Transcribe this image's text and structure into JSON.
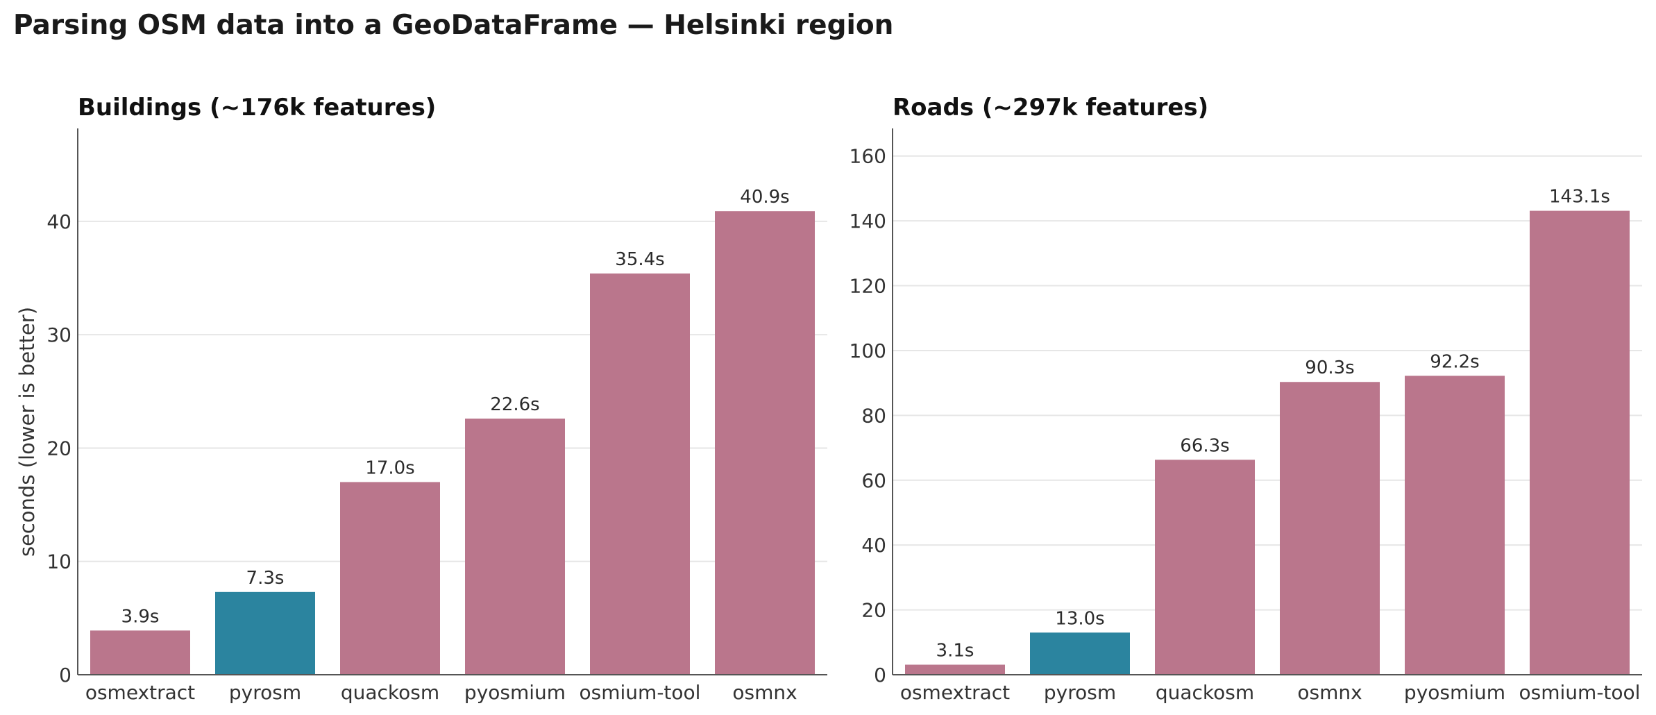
{
  "suptitle": "Parsing OSM data into a GeoDataFrame — Helsinki region",
  "colors": {
    "highlight": "#2b849f",
    "default": "#ba768c",
    "grid": "#e6e6e6",
    "axis": "#555555"
  },
  "chart_data": [
    {
      "type": "bar",
      "title": "Buildings (~176k features)",
      "ylabel": "seconds (lower is better)",
      "categories": [
        "osmextract",
        "pyrosm",
        "quackosm",
        "pyosmium",
        "osmium-tool",
        "osmnx"
      ],
      "values": [
        3.9,
        7.3,
        17.0,
        22.6,
        35.4,
        40.9
      ],
      "value_labels": [
        "3.9s",
        "7.3s",
        "17.0s",
        "22.6s",
        "35.4s",
        "40.9s"
      ],
      "highlight": "pyrosm",
      "ylim": [
        0,
        48.2
      ],
      "yticks": [
        0,
        10,
        20,
        30,
        40
      ],
      "grid": true
    },
    {
      "type": "bar",
      "title": "Roads (~297k features)",
      "ylabel": "",
      "categories": [
        "osmextract",
        "pyrosm",
        "quackosm",
        "osmnx",
        "pyosmium",
        "osmium-tool"
      ],
      "values": [
        3.1,
        13.0,
        66.3,
        90.3,
        92.2,
        143.1
      ],
      "value_labels": [
        "3.1s",
        "13.0s",
        "66.3s",
        "90.3s",
        "92.2s",
        "143.1s"
      ],
      "highlight": "pyrosm",
      "ylim": [
        0,
        168.5
      ],
      "yticks": [
        0,
        20,
        40,
        60,
        80,
        100,
        120,
        140,
        160
      ],
      "grid": true
    }
  ]
}
